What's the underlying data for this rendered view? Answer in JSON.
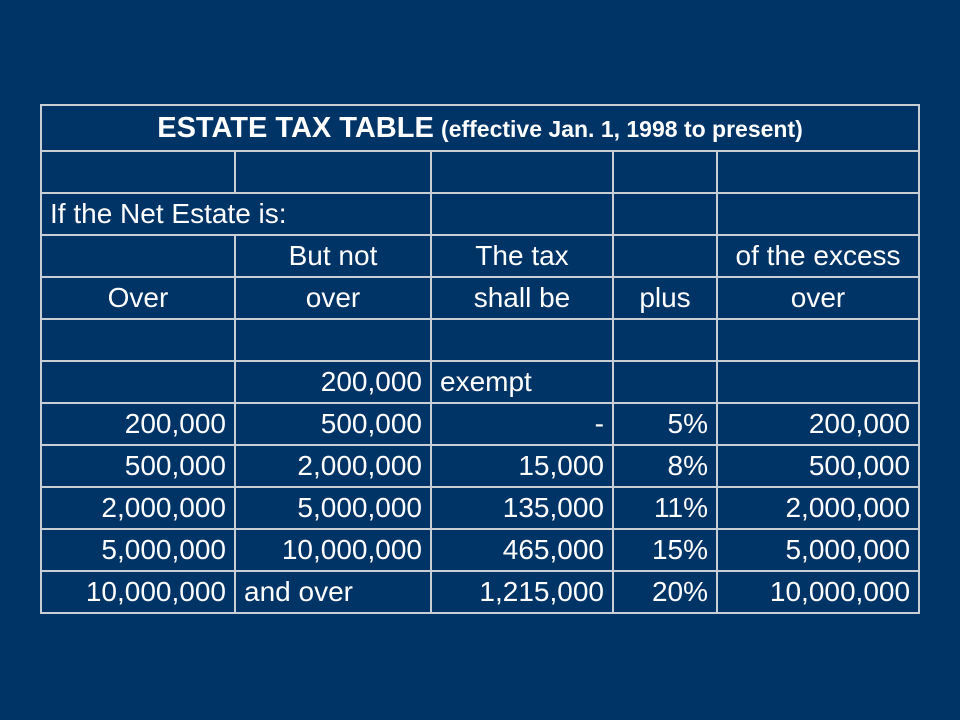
{
  "table": {
    "title": "ESTATE TAX TABLE",
    "subtitle": "(effective Jan. 1, 1998 to present)",
    "intro": "If the Net Estate is:",
    "header_row1": [
      "",
      "But not",
      "The tax",
      "",
      "of the excess"
    ],
    "header_row2": [
      "Over",
      "over",
      "shall be",
      "plus",
      "over"
    ],
    "rows": [
      [
        "",
        "200,000",
        "exempt",
        "",
        ""
      ],
      [
        "200,000",
        "500,000",
        "-",
        "5%",
        "200,000"
      ],
      [
        "500,000",
        "2,000,000",
        "15,000",
        "8%",
        "500,000"
      ],
      [
        "2,000,000",
        "5,000,000",
        "135,000",
        "11%",
        "2,000,000"
      ],
      [
        "5,000,000",
        "10,000,000",
        "465,000",
        "15%",
        "5,000,000"
      ],
      [
        "10,000,000",
        "and over",
        "1,215,000",
        "20%",
        "10,000,000"
      ]
    ]
  },
  "colors": {
    "background": "#003366",
    "grid": "#c9cdd4",
    "text": "#ffffff"
  }
}
